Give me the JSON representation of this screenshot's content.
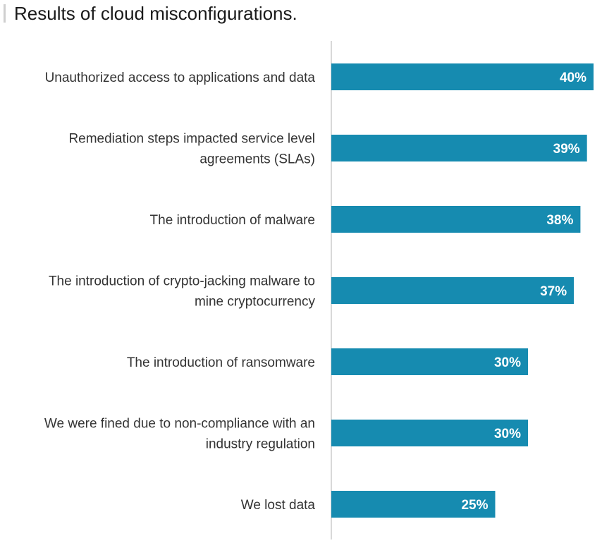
{
  "chart_data": {
    "type": "bar",
    "orientation": "horizontal",
    "title": "Results of cloud misconfigurations.",
    "categories": [
      [
        "Unauthorized access to applications and data"
      ],
      [
        "Remediation steps impacted service level",
        "agreements (SLAs)"
      ],
      [
        "The introduction of malware"
      ],
      [
        "The introduction of crypto-jacking malware to",
        "mine cryptocurrency"
      ],
      [
        "The introduction of ransomware"
      ],
      [
        "We were fined due to non-compliance with an",
        "industry regulation"
      ],
      [
        "We lost data"
      ]
    ],
    "values": [
      40,
      39,
      38,
      37,
      30,
      30,
      25
    ],
    "value_labels": [
      "40%",
      "39%",
      "38%",
      "37%",
      "30%",
      "30%",
      "25%"
    ],
    "xlim": [
      0,
      40
    ],
    "bar_color": "#168bb0",
    "value_label_color": "#ffffff",
    "axis_color": "#cccccc",
    "grid": false,
    "legend": false
  }
}
